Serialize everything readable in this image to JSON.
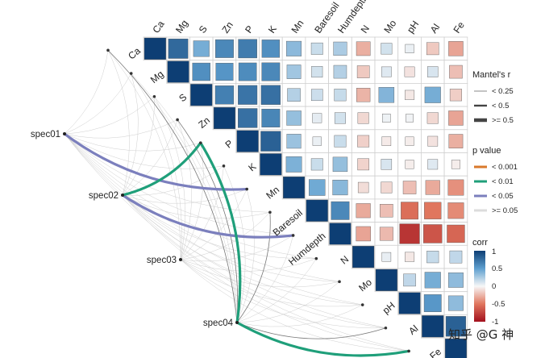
{
  "chart_data": {
    "type": "heatmap",
    "title": "",
    "variables": [
      "Ca",
      "Mg",
      "S",
      "Zn",
      "P",
      "K",
      "Mn",
      "Baresoil",
      "Humdepth",
      "N",
      "Mo",
      "pH",
      "Al",
      "Fe"
    ],
    "correlation_upper": [
      [
        1.0,
        0.78,
        0.42,
        0.62,
        0.68,
        0.58,
        0.35,
        0.15,
        0.25,
        -0.28,
        0.12,
        0.04,
        -0.18,
        -0.32
      ],
      [
        0.78,
        1.0,
        0.58,
        0.55,
        0.6,
        0.62,
        0.28,
        0.12,
        0.22,
        -0.18,
        0.08,
        -0.08,
        0.1,
        -0.22
      ],
      [
        0.42,
        0.58,
        1.0,
        0.66,
        0.72,
        0.74,
        0.22,
        0.14,
        0.16,
        -0.26,
        0.38,
        -0.06,
        0.42,
        -0.16
      ],
      [
        0.62,
        0.55,
        0.66,
        1.0,
        0.74,
        0.63,
        0.32,
        0.06,
        0.12,
        -0.12,
        0.03,
        0.02,
        -0.12,
        -0.32
      ],
      [
        0.68,
        0.6,
        0.72,
        0.74,
        1.0,
        0.82,
        0.3,
        0.04,
        0.15,
        -0.15,
        -0.05,
        -0.04,
        -0.08,
        -0.28
      ],
      [
        0.58,
        0.62,
        0.74,
        0.63,
        0.82,
        1.0,
        0.4,
        0.15,
        0.32,
        -0.14,
        0.1,
        -0.04,
        0.08,
        -0.04
      ],
      [
        0.35,
        0.28,
        0.22,
        0.32,
        0.3,
        0.4,
        1.0,
        0.44,
        0.36,
        -0.1,
        -0.12,
        -0.22,
        -0.3,
        -0.4
      ],
      [
        0.15,
        0.12,
        0.14,
        0.06,
        0.04,
        0.15,
        0.44,
        1.0,
        0.62,
        -0.3,
        -0.22,
        -0.54,
        -0.5,
        -0.42
      ],
      [
        0.25,
        0.22,
        0.16,
        0.12,
        0.15,
        0.32,
        0.36,
        0.62,
        1.0,
        -0.32,
        -0.24,
        -0.82,
        -0.66,
        -0.58
      ],
      [
        -0.28,
        -0.18,
        -0.26,
        -0.12,
        -0.15,
        -0.14,
        -0.1,
        -0.3,
        -0.32,
        1.0,
        0.05,
        -0.06,
        0.16,
        0.18
      ],
      [
        0.12,
        0.08,
        0.38,
        0.03,
        -0.05,
        0.1,
        -0.12,
        -0.22,
        -0.24,
        0.05,
        1.0,
        0.18,
        0.42,
        0.34
      ],
      [
        0.04,
        -0.08,
        -0.06,
        0.02,
        -0.04,
        -0.04,
        -0.22,
        -0.54,
        -0.82,
        -0.06,
        0.18,
        1.0,
        0.54,
        0.34
      ],
      [
        -0.18,
        0.1,
        0.42,
        -0.12,
        -0.08,
        0.08,
        -0.3,
        -0.5,
        -0.66,
        0.16,
        0.42,
        0.54,
        1.0,
        0.82
      ],
      [
        -0.32,
        -0.22,
        -0.16,
        -0.32,
        -0.28,
        -0.04,
        -0.4,
        -0.42,
        -0.58,
        0.18,
        0.34,
        0.34,
        0.82,
        1.0
      ]
    ],
    "species": [
      "spec01",
      "spec02",
      "spec03",
      "spec04"
    ],
    "mantel_links": [
      {
        "spec": "spec01",
        "env": "Mn",
        "p_class": "< 0.05",
        "r_class": ">= 0.5"
      },
      {
        "spec": "spec02",
        "env": "P",
        "p_class": "< 0.01",
        "r_class": ">= 0.5"
      },
      {
        "spec": "spec02",
        "env": "Humdepth",
        "p_class": "< 0.05",
        "r_class": ">= 0.5"
      },
      {
        "spec": "spec04",
        "env": "P",
        "p_class": "< 0.01",
        "r_class": ">= 0.5"
      },
      {
        "spec": "spec04",
        "env": "Fe",
        "p_class": "< 0.01",
        "r_class": ">= 0.5"
      },
      {
        "spec": "spec01",
        "env": "Ca",
        "p_class": ">= 0.05",
        "r_class": "< 0.25"
      },
      {
        "spec": "spec01",
        "env": "Mg",
        "p_class": ">= 0.05",
        "r_class": "< 0.25"
      },
      {
        "spec": "spec01",
        "env": "S",
        "p_class": ">= 0.05",
        "r_class": "< 0.25"
      },
      {
        "spec": "spec01",
        "env": "Zn",
        "p_class": ">= 0.05",
        "r_class": "< 0.25"
      },
      {
        "spec": "spec01",
        "env": "P",
        "p_class": ">= 0.05",
        "r_class": "< 0.25"
      },
      {
        "spec": "spec01",
        "env": "K",
        "p_class": ">= 0.05",
        "r_class": "< 0.25"
      },
      {
        "spec": "spec01",
        "env": "Baresoil",
        "p_class": ">= 0.05",
        "r_class": "< 0.25"
      },
      {
        "spec": "spec01",
        "env": "Humdepth",
        "p_class": ">= 0.05",
        "r_class": "< 0.25"
      },
      {
        "spec": "spec01",
        "env": "N",
        "p_class": ">= 0.05",
        "r_class": "< 0.25"
      },
      {
        "spec": "spec01",
        "env": "Mo",
        "p_class": ">= 0.05",
        "r_class": "< 0.25"
      },
      {
        "spec": "spec01",
        "env": "pH",
        "p_class": ">= 0.05",
        "r_class": "< 0.25"
      },
      {
        "spec": "spec01",
        "env": "Al",
        "p_class": ">= 0.05",
        "r_class": "< 0.25"
      },
      {
        "spec": "spec01",
        "env": "Fe",
        "p_class": ">= 0.05",
        "r_class": "< 0.25"
      },
      {
        "spec": "spec02",
        "env": "Ca",
        "p_class": ">= 0.05",
        "r_class": "< 0.25"
      },
      {
        "spec": "spec02",
        "env": "Mg",
        "p_class": ">= 0.05",
        "r_class": "< 0.25"
      },
      {
        "spec": "spec02",
        "env": "S",
        "p_class": ">= 0.05",
        "r_class": "< 0.25"
      },
      {
        "spec": "spec02",
        "env": "Zn",
        "p_class": ">= 0.05",
        "r_class": "< 0.25"
      },
      {
        "spec": "spec02",
        "env": "K",
        "p_class": ">= 0.05",
        "r_class": "< 0.25"
      },
      {
        "spec": "spec02",
        "env": "Mn",
        "p_class": ">= 0.05",
        "r_class": "< 0.25"
      },
      {
        "spec": "spec02",
        "env": "Baresoil",
        "p_class": ">= 0.05",
        "r_class": "< 0.25"
      },
      {
        "spec": "spec02",
        "env": "N",
        "p_class": ">= 0.05",
        "r_class": "< 0.25"
      },
      {
        "spec": "spec02",
        "env": "Mo",
        "p_class": ">= 0.05",
        "r_class": "< 0.25"
      },
      {
        "spec": "spec02",
        "env": "pH",
        "p_class": ">= 0.05",
        "r_class": "< 0.25"
      },
      {
        "spec": "spec02",
        "env": "Al",
        "p_class": ">= 0.05",
        "r_class": "< 0.25"
      },
      {
        "spec": "spec02",
        "env": "Fe",
        "p_class": ">= 0.05",
        "r_class": "< 0.25"
      },
      {
        "spec": "spec03",
        "env": "Ca",
        "p_class": ">= 0.05",
        "r_class": "< 0.25"
      },
      {
        "spec": "spec03",
        "env": "Mg",
        "p_class": ">= 0.05",
        "r_class": "< 0.25"
      },
      {
        "spec": "spec03",
        "env": "S",
        "p_class": ">= 0.05",
        "r_class": "< 0.25"
      },
      {
        "spec": "spec03",
        "env": "Zn",
        "p_class": ">= 0.05",
        "r_class": "< 0.25"
      },
      {
        "spec": "spec03",
        "env": "P",
        "p_class": ">= 0.05",
        "r_class": "< 0.25"
      },
      {
        "spec": "spec03",
        "env": "K",
        "p_class": ">= 0.05",
        "r_class": "< 0.25"
      },
      {
        "spec": "spec03",
        "env": "Mn",
        "p_class": ">= 0.05",
        "r_class": "< 0.25"
      },
      {
        "spec": "spec03",
        "env": "Baresoil",
        "p_class": ">= 0.05",
        "r_class": "< 0.25"
      },
      {
        "spec": "spec03",
        "env": "Humdepth",
        "p_class": ">= 0.05",
        "r_class": "< 0.25"
      },
      {
        "spec": "spec03",
        "env": "N",
        "p_class": ">= 0.05",
        "r_class": "< 0.25"
      },
      {
        "spec": "spec03",
        "env": "Mo",
        "p_class": ">= 0.05",
        "r_class": "< 0.25"
      },
      {
        "spec": "spec03",
        "env": "pH",
        "p_class": ">= 0.05",
        "r_class": "< 0.25"
      },
      {
        "spec": "spec03",
        "env": "Al",
        "p_class": ">= 0.05",
        "r_class": "< 0.25"
      },
      {
        "spec": "spec03",
        "env": "Fe",
        "p_class": ">= 0.05",
        "r_class": "< 0.25"
      },
      {
        "spec": "spec04",
        "env": "Ca",
        "p_class": ">= 0.05",
        "r_class": "< 0.5"
      },
      {
        "spec": "spec04",
        "env": "Mg",
        "p_class": ">= 0.05",
        "r_class": "< 0.25"
      },
      {
        "spec": "spec04",
        "env": "S",
        "p_class": ">= 0.05",
        "r_class": "< 0.25"
      },
      {
        "spec": "spec04",
        "env": "Zn",
        "p_class": ">= 0.05",
        "r_class": "< 0.5"
      },
      {
        "spec": "spec04",
        "env": "K",
        "p_class": ">= 0.05",
        "r_class": "< 0.25"
      },
      {
        "spec": "spec04",
        "env": "Mn",
        "p_class": ">= 0.05",
        "r_class": "< 0.25"
      },
      {
        "spec": "spec04",
        "env": "Baresoil",
        "p_class": ">= 0.05",
        "r_class": "< 0.5"
      },
      {
        "spec": "spec04",
        "env": "Humdepth",
        "p_class": ">= 0.05",
        "r_class": "< 0.25"
      },
      {
        "spec": "spec04",
        "env": "N",
        "p_class": ">= 0.05",
        "r_class": "< 0.25"
      },
      {
        "spec": "spec04",
        "env": "Mo",
        "p_class": ">= 0.05",
        "r_class": "< 0.25"
      },
      {
        "spec": "spec04",
        "env": "pH",
        "p_class": ">= 0.05",
        "r_class": "< 0.25"
      },
      {
        "spec": "spec04",
        "env": "Al",
        "p_class": ">= 0.05",
        "r_class": "< 0.5"
      }
    ],
    "legend": {
      "mantel_r": {
        "title": "Mantel's r",
        "items": [
          "< 0.25",
          "< 0.5",
          ">= 0.5"
        ]
      },
      "p_value": {
        "title": "p value",
        "items": [
          {
            "label": "< 0.001",
            "color": "#d9792b"
          },
          {
            "label": "< 0.01",
            "color": "#1f9f7a"
          },
          {
            "label": "< 0.05",
            "color": "#7b7fbd"
          },
          {
            "label": ">= 0.05",
            "color": "#dcdcdc"
          }
        ]
      },
      "corr": {
        "title": "corr",
        "ticks": [
          1,
          0.5,
          0,
          -0.5,
          -1
        ]
      }
    },
    "colors": {
      "pos": "#0d3e74",
      "mid": "#f7f7f7",
      "neg": "#a2101d"
    }
  },
  "watermark": "知乎 @G 神"
}
